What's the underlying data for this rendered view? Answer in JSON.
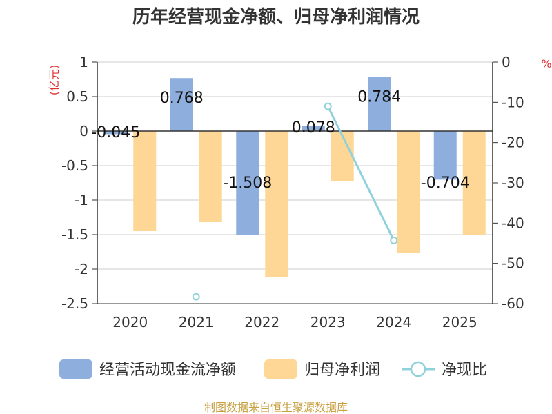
{
  "chart_data": {
    "type": "bar",
    "title": "历年经营现金净额、归母净利润情况",
    "categories": [
      "2020",
      "2021",
      "2022",
      "2023",
      "2024",
      "2025"
    ],
    "left_axis": {
      "unit": "(亿元)",
      "ylim": [
        -2.5,
        1
      ],
      "ticks": [
        "1",
        "0.5",
        "0",
        "-0.5",
        "-1",
        "-1.5",
        "-2",
        "-2.5"
      ]
    },
    "right_axis": {
      "unit": "%",
      "ylim": [
        -60,
        0
      ],
      "ticks": [
        "0",
        "-10",
        "-20",
        "-30",
        "-40",
        "-50",
        "-60"
      ]
    },
    "series": [
      {
        "name": "经营活动现金流净额",
        "type": "bar",
        "axis": "left",
        "color": "#8eaedd",
        "values": [
          -0.045,
          0.768,
          -1.508,
          0.078,
          0.784,
          -0.704
        ],
        "labels": [
          "-0.045",
          "0.768",
          "-1.508",
          "0.078",
          "0.784",
          "-0.704"
        ]
      },
      {
        "name": "归母净利润",
        "type": "bar",
        "axis": "left",
        "color": "#fed796",
        "values": [
          -1.45,
          -1.32,
          -2.12,
          -0.72,
          -1.77,
          -1.51
        ]
      },
      {
        "name": "净现比",
        "type": "line",
        "axis": "right",
        "color": "#8fd2db",
        "values": [
          null,
          -58.3,
          null,
          -11.0,
          -44.3,
          null
        ]
      }
    ],
    "source": "制图数据来自恒生聚源数据库"
  }
}
